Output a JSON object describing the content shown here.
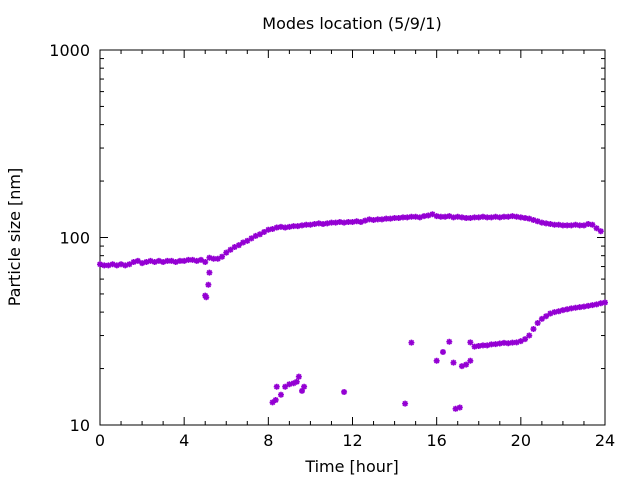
{
  "chart_data": {
    "type": "scatter",
    "title": "Modes location (5/9/1)",
    "xlabel": "Time [hour]",
    "ylabel": "Particle size [nm]",
    "xlim": [
      0,
      24
    ],
    "ylim": [
      10,
      1000
    ],
    "yscale": "log",
    "x_ticks": [
      0,
      4,
      8,
      12,
      16,
      20,
      24
    ],
    "x_tick_labels": [
      "0",
      "4",
      "8",
      "12",
      "16",
      "20",
      "24"
    ],
    "y_ticks": [
      10,
      100,
      1000
    ],
    "y_tick_labels": [
      "10",
      "100",
      "1000"
    ],
    "marker_color": "#9400d3",
    "grid": false,
    "legend": "none",
    "series": [
      {
        "values": [
          [
            0.0,
            72
          ],
          [
            0.2,
            71
          ],
          [
            0.4,
            71
          ],
          [
            0.6,
            72
          ],
          [
            0.8,
            71
          ],
          [
            1.0,
            72
          ],
          [
            1.2,
            71
          ],
          [
            1.4,
            72
          ],
          [
            1.6,
            74
          ],
          [
            1.8,
            75
          ],
          [
            2.0,
            73
          ],
          [
            2.2,
            74
          ],
          [
            2.4,
            75
          ],
          [
            2.6,
            74
          ],
          [
            2.8,
            75
          ],
          [
            3.0,
            74
          ],
          [
            3.2,
            75
          ],
          [
            3.4,
            75
          ],
          [
            3.6,
            74
          ],
          [
            3.8,
            75
          ],
          [
            4.0,
            75
          ],
          [
            4.2,
            76
          ],
          [
            4.4,
            76
          ],
          [
            4.6,
            75
          ],
          [
            4.8,
            76
          ],
          [
            5.0,
            74
          ],
          [
            5.2,
            78
          ],
          [
            5.4,
            77
          ],
          [
            5.6,
            77
          ],
          [
            5.8,
            79
          ],
          [
            6.0,
            83
          ],
          [
            6.2,
            86
          ],
          [
            6.4,
            89
          ],
          [
            6.6,
            91
          ],
          [
            6.8,
            94
          ],
          [
            7.0,
            96
          ],
          [
            7.2,
            99
          ],
          [
            7.4,
            102
          ],
          [
            7.6,
            104
          ],
          [
            7.8,
            107
          ],
          [
            8.0,
            110
          ],
          [
            8.2,
            111
          ],
          [
            8.4,
            113
          ],
          [
            8.6,
            114
          ],
          [
            8.8,
            113
          ],
          [
            9.0,
            114
          ],
          [
            9.2,
            115
          ],
          [
            9.4,
            115
          ],
          [
            9.6,
            116
          ],
          [
            9.8,
            117
          ],
          [
            10.0,
            117
          ],
          [
            10.2,
            118
          ],
          [
            10.4,
            119
          ],
          [
            10.6,
            118
          ],
          [
            10.8,
            119
          ],
          [
            11.0,
            120
          ],
          [
            11.2,
            120
          ],
          [
            11.4,
            121
          ],
          [
            11.6,
            120
          ],
          [
            11.8,
            121
          ],
          [
            12.0,
            121
          ],
          [
            12.2,
            122
          ],
          [
            12.4,
            121
          ],
          [
            12.6,
            123
          ],
          [
            12.8,
            125
          ],
          [
            13.0,
            124
          ],
          [
            13.2,
            125
          ],
          [
            13.4,
            125
          ],
          [
            13.6,
            126
          ],
          [
            13.8,
            126
          ],
          [
            14.0,
            127
          ],
          [
            14.2,
            127
          ],
          [
            14.4,
            128
          ],
          [
            14.6,
            128
          ],
          [
            14.8,
            129
          ],
          [
            15.0,
            129
          ],
          [
            15.2,
            128
          ],
          [
            15.4,
            130
          ],
          [
            15.6,
            131
          ],
          [
            15.8,
            133
          ],
          [
            16.0,
            130
          ],
          [
            16.2,
            129
          ],
          [
            16.4,
            129
          ],
          [
            16.6,
            130
          ],
          [
            16.8,
            128
          ],
          [
            17.0,
            129
          ],
          [
            17.2,
            128
          ],
          [
            17.4,
            127
          ],
          [
            17.6,
            127
          ],
          [
            17.8,
            128
          ],
          [
            18.0,
            128
          ],
          [
            18.2,
            129
          ],
          [
            18.4,
            128
          ],
          [
            18.6,
            128
          ],
          [
            18.8,
            129
          ],
          [
            19.0,
            128
          ],
          [
            19.2,
            129
          ],
          [
            19.4,
            129
          ],
          [
            19.6,
            130
          ],
          [
            19.8,
            129
          ],
          [
            20.0,
            128
          ],
          [
            20.2,
            127
          ],
          [
            20.4,
            126
          ],
          [
            20.6,
            124
          ],
          [
            20.8,
            122
          ],
          [
            21.0,
            120
          ],
          [
            21.2,
            119
          ],
          [
            21.4,
            118
          ],
          [
            21.6,
            117
          ],
          [
            21.8,
            117
          ],
          [
            22.0,
            116
          ],
          [
            22.2,
            116
          ],
          [
            22.4,
            116
          ],
          [
            22.6,
            117
          ],
          [
            22.8,
            116
          ],
          [
            23.0,
            116
          ],
          [
            23.2,
            118
          ],
          [
            23.4,
            117
          ],
          [
            23.6,
            112
          ],
          [
            23.8,
            108
          ],
          [
            5.0,
            49
          ],
          [
            5.05,
            48
          ],
          [
            5.15,
            56
          ],
          [
            5.2,
            65
          ],
          [
            8.2,
            13.2
          ],
          [
            8.35,
            13.6
          ],
          [
            8.4,
            16
          ],
          [
            8.6,
            14.5
          ],
          [
            8.8,
            16
          ],
          [
            9.0,
            16.5
          ],
          [
            9.2,
            16.7
          ],
          [
            9.35,
            17
          ],
          [
            9.45,
            18.1
          ],
          [
            9.6,
            15.2
          ],
          [
            9.7,
            16
          ],
          [
            11.6,
            15
          ],
          [
            14.5,
            13
          ],
          [
            14.8,
            27.5
          ],
          [
            16.0,
            22
          ],
          [
            16.3,
            24.5
          ],
          [
            16.6,
            27.8
          ],
          [
            16.8,
            21.5
          ],
          [
            16.9,
            12.2
          ],
          [
            17.1,
            12.4
          ],
          [
            17.2,
            20.6
          ],
          [
            17.4,
            21
          ],
          [
            17.6,
            22
          ],
          [
            17.6,
            27.6
          ],
          [
            17.8,
            26.2
          ],
          [
            18.0,
            26.4
          ],
          [
            18.2,
            26.6
          ],
          [
            18.4,
            26.6
          ],
          [
            18.6,
            26.9
          ],
          [
            18.8,
            27
          ],
          [
            19.0,
            27.2
          ],
          [
            19.2,
            27.4
          ],
          [
            19.4,
            27.3
          ],
          [
            19.6,
            27.5
          ],
          [
            19.8,
            27.6
          ],
          [
            20.0,
            28
          ],
          [
            20.2,
            28.7
          ],
          [
            20.4,
            30
          ],
          [
            20.6,
            32.5
          ],
          [
            20.8,
            35
          ],
          [
            21.0,
            36.8
          ],
          [
            21.2,
            38
          ],
          [
            21.4,
            39.3
          ],
          [
            21.6,
            40
          ],
          [
            21.8,
            40.4
          ],
          [
            22.0,
            41
          ],
          [
            22.2,
            41.4
          ],
          [
            22.4,
            41.9
          ],
          [
            22.6,
            42.2
          ],
          [
            22.8,
            42.5
          ],
          [
            23.0,
            42.8
          ],
          [
            23.2,
            43.2
          ],
          [
            23.4,
            43.6
          ],
          [
            23.6,
            44
          ],
          [
            23.8,
            44.6
          ],
          [
            24.0,
            45
          ]
        ]
      }
    ]
  }
}
